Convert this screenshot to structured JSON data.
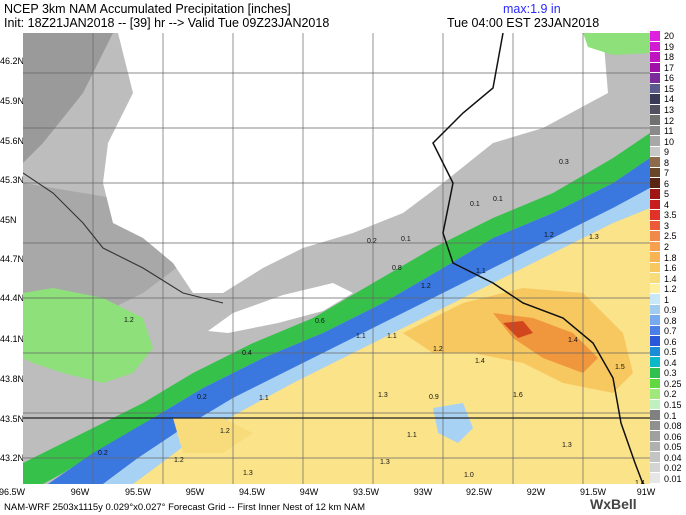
{
  "header": {
    "line1": "NCEP 3km NAM Accumulated Precipitation [inches]",
    "line2": "Init: 18Z21JAN2018 -- [39] hr --> Valid Tue 09Z23JAN2018",
    "max": "max:1.9 in",
    "local_time": "Tue 04:00 EST 23JAN2018"
  },
  "footer": {
    "text": "NAM-WRF 2503x1115y 0.029°x0.027° Forecast Grid -- First Inner Nest of 12 km NAM",
    "brand": "WxBell"
  },
  "axes": {
    "lat_labels": [
      "46.2N",
      "45.9N",
      "45.6N",
      "45.3N",
      "45N",
      "44.7N",
      "44.4N",
      "44.1N",
      "43.8N",
      "43.5N",
      "43.2N"
    ],
    "lon_labels": [
      "96.5W",
      "96W",
      "95.5W",
      "95W",
      "94.5W",
      "94W",
      "93.5W",
      "93W",
      "92.5W",
      "92W",
      "91.5W",
      "91W"
    ]
  },
  "colorbar": {
    "levels": [
      "20",
      "19",
      "18",
      "17",
      "16",
      "15",
      "14",
      "13",
      "12",
      "11",
      "10",
      "9",
      "8",
      "7",
      "6",
      "5",
      "4",
      "3.5",
      "3",
      "2.5",
      "2",
      "1.8",
      "1.6",
      "1.4",
      "1.2",
      "1",
      "0.9",
      "0.8",
      "0.7",
      "0.6",
      "0.5",
      "0.4",
      "0.3",
      "0.25",
      "0.2",
      "0.15",
      "0.1",
      "0.08",
      "0.06",
      "0.05",
      "0.04",
      "0.02",
      "0.01"
    ],
    "colors": [
      "#e020e0",
      "#d21ad2",
      "#c014c0",
      "#a010a8",
      "#7a2a9a",
      "#5a5a8c",
      "#3a3a58",
      "#505060",
      "#707070",
      "#8a8a8a",
      "#a8a8a8",
      "#c8c8c8",
      "#8c6a4a",
      "#6a4628",
      "#5a2412",
      "#a01414",
      "#c81e1e",
      "#e03228",
      "#ec5a3a",
      "#f08a4a",
      "#f8a050",
      "#f8b454",
      "#f8c860",
      "#f8dc7c",
      "#fff0a0",
      "#c8e8f8",
      "#a0ccf0",
      "#78aaf0",
      "#4a80e8",
      "#2a58d8",
      "#1a8cd8",
      "#0ab8c8",
      "#30c050",
      "#60d840",
      "#a0e87c",
      "#c0f0c0",
      "#808080",
      "#909090",
      "#a0a0a0",
      "#b0b0b0",
      "#c4c4c4",
      "#d4d4d4",
      "#e6e6e6"
    ]
  },
  "contour_labels": [
    {
      "text": "0.1"
    },
    {
      "text": "0.2"
    },
    {
      "text": "0.3"
    },
    {
      "text": "0.1"
    },
    {
      "text": "0.1"
    },
    {
      "text": "0.8"
    },
    {
      "text": "0.6"
    },
    {
      "text": "0.4"
    },
    {
      "text": "0.2"
    },
    {
      "text": "0.2"
    },
    {
      "text": "1.2"
    },
    {
      "text": "1.1"
    },
    {
      "text": "1.1"
    },
    {
      "text": "1.1"
    },
    {
      "text": "1.2"
    },
    {
      "text": "1.2"
    },
    {
      "text": "1.3"
    },
    {
      "text": "1.4"
    },
    {
      "text": "1.4"
    },
    {
      "text": "1.5"
    },
    {
      "text": "1.2"
    },
    {
      "text": "1.1"
    },
    {
      "text": "1.3"
    },
    {
      "text": "0.9"
    },
    {
      "text": "1.6"
    },
    {
      "text": "1.2"
    },
    {
      "text": "1.2"
    },
    {
      "text": "1.3"
    },
    {
      "text": "1.3"
    },
    {
      "text": "1.0"
    },
    {
      "text": "1.3"
    },
    {
      "text": "1.4"
    },
    {
      "text": "1.1"
    }
  ]
}
